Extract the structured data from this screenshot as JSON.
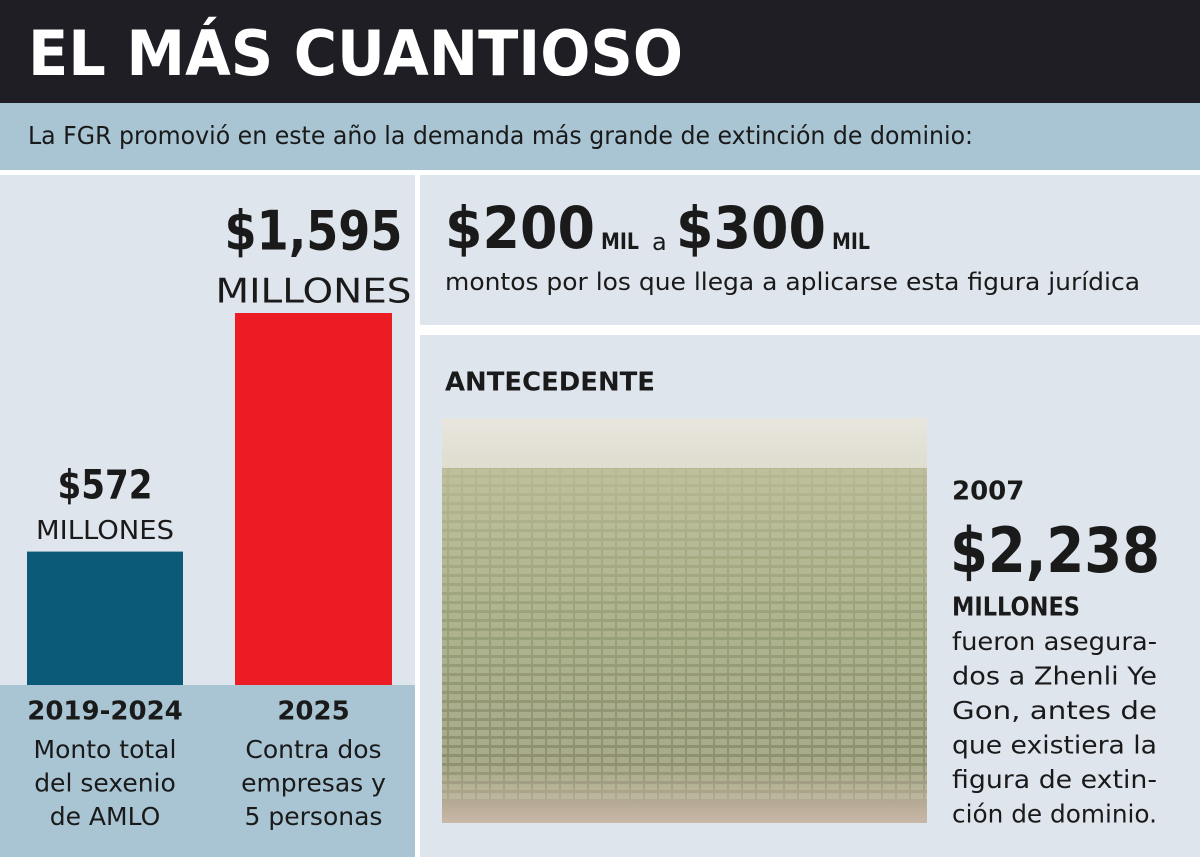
{
  "header": {
    "title": "EL MÁS CUANTIOSO",
    "subtitle": "La FGR promovió en este año la demanda más grande de extinción de dominio:"
  },
  "chart_data": {
    "type": "bar",
    "categories": [
      "2019-2024",
      "2025"
    ],
    "values": [
      572,
      1595
    ],
    "value_labels": [
      "$572",
      "$1,595"
    ],
    "value_unit": "MILLONES",
    "colors": [
      "#0b5b78",
      "#ec1c24"
    ],
    "descriptions": [
      [
        "Monto total",
        "del sexenio",
        "de AMLO"
      ],
      [
        "Contra dos",
        "empresas y",
        "5 personas"
      ]
    ]
  },
  "range_panel": {
    "from": "$200",
    "from_unit": "MIL",
    "connector": "a",
    "to": "$300",
    "to_unit": "MIL",
    "caption": "montos por los que llega a aplicarse esta figura jurídica"
  },
  "background_panel": {
    "heading": "ANTECEDENTE",
    "year": "2007",
    "amount": "$2,238",
    "unit": "MILLONES",
    "lines": [
      "fueron asegura-",
      "dos a Zhenli Ye",
      "Gon, antes de",
      "que existiera la",
      "figura de extin-",
      "ción de dominio."
    ]
  }
}
